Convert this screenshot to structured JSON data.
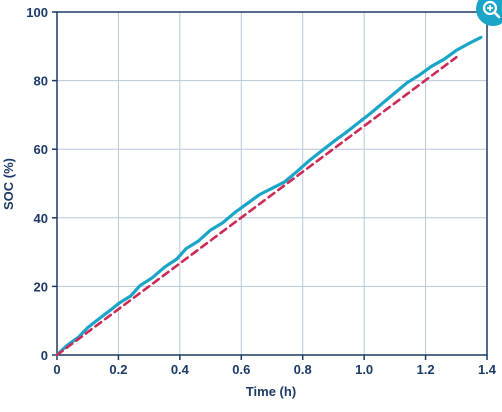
{
  "chart_data": {
    "type": "line",
    "xlabel": "Time (h)",
    "ylabel": "SOC (%)",
    "xlim": [
      0,
      1.4
    ],
    "ylim": [
      0,
      100
    ],
    "x_ticks": [
      0,
      0.2,
      0.4,
      0.6,
      0.8,
      1.0,
      1.2,
      1.4
    ],
    "x_tick_labels": [
      "0",
      "0.2",
      "0.4",
      "0.6",
      "0.8",
      "1.0",
      "1.2",
      "1.4"
    ],
    "y_ticks": [
      0,
      20,
      40,
      60,
      80,
      100
    ],
    "y_tick_labels": [
      "0",
      "20",
      "40",
      "60",
      "80",
      "100"
    ],
    "grid": true,
    "series": [
      {
        "color": "#1aa5c8",
        "style": "solid",
        "points": [
          [
            0,
            0
          ],
          [
            0.03,
            2.6
          ],
          [
            0.07,
            5.2
          ],
          [
            0.1,
            8.0
          ],
          [
            0.14,
            10.8
          ],
          [
            0.18,
            13.5
          ],
          [
            0.2,
            15.0
          ],
          [
            0.24,
            17.2
          ],
          [
            0.27,
            20.2
          ],
          [
            0.31,
            22.5
          ],
          [
            0.35,
            25.6
          ],
          [
            0.39,
            28.0
          ],
          [
            0.42,
            31.0
          ],
          [
            0.46,
            33.2
          ],
          [
            0.5,
            36.4
          ],
          [
            0.54,
            38.6
          ],
          [
            0.58,
            41.6
          ],
          [
            0.62,
            44.2
          ],
          [
            0.66,
            46.8
          ],
          [
            0.7,
            48.6
          ],
          [
            0.74,
            50.4
          ],
          [
            0.78,
            53.4
          ],
          [
            0.82,
            56.6
          ],
          [
            0.86,
            59.4
          ],
          [
            0.9,
            62.2
          ],
          [
            0.94,
            64.8
          ],
          [
            0.98,
            67.6
          ],
          [
            1.02,
            70.4
          ],
          [
            1.06,
            73.4
          ],
          [
            1.1,
            76.4
          ],
          [
            1.14,
            79.4
          ],
          [
            1.18,
            81.6
          ],
          [
            1.22,
            84.2
          ],
          [
            1.26,
            86.2
          ],
          [
            1.3,
            88.8
          ],
          [
            1.34,
            90.8
          ],
          [
            1.38,
            92.6
          ]
        ]
      },
      {
        "color": "#cc2a55",
        "style": "dashed",
        "points": [
          [
            0,
            0
          ],
          [
            1.3,
            86.8
          ]
        ]
      }
    ]
  },
  "ui": {
    "zoom_icon": "magnifier-plus-icon",
    "zoom_color": "#1aa5c8"
  }
}
